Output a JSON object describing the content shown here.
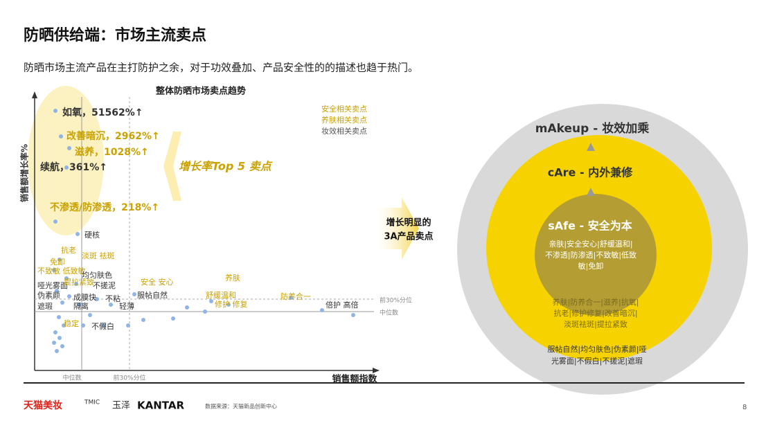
{
  "header": {
    "title": "防晒供给端：市场主流卖点",
    "subtitle": "防晒市场主流产品在主打防护之余，对于功效叠加、产品安全性的的描述也趋于热门。"
  },
  "chart": {
    "title": "整体防晒市场卖点趋势",
    "y_label": "销售额增长率%",
    "x_label": "销售额指数",
    "legend": [
      "安全相关卖点",
      "养肤相关卖点",
      "妆效相关卖点"
    ],
    "top5": [
      "如氧，51562%↑",
      "改善暗沉，2962%↑",
      "滋养，1028%↑",
      "续航，361%↑",
      "不渗透/防渗透，218%↑"
    ],
    "callout": "增长率Top 5 卖点",
    "points": [
      "硬核",
      "抗老",
      "淡斑 祛斑",
      "免卸",
      "不致敏 低致敏",
      "均匀肤色",
      "哑光雾面",
      "提拉紧致",
      "不搓泥",
      "安全 安心",
      "养肤",
      "伪素颜",
      "服帖自然",
      "舒缓温和",
      "防养合一",
      "遮瑕",
      "成膜快",
      "隔离",
      "不粘",
      "轻薄",
      "修护 修复",
      "倍护 高倍",
      "稳定",
      "不假白"
    ],
    "ref_labels": [
      "前30%分位",
      "中位数",
      "中位数",
      "前30%分位"
    ]
  },
  "arrow_label": [
    "增长明显的",
    "3A产品卖点"
  ],
  "circles": {
    "outer": {
      "title": "mAkeup - 妆效加乘",
      "items": [
        "服帖自然|均匀肤色|伪素颜|哑",
        "光雾面|不假白|不搓泥|遮瑕"
      ]
    },
    "middle": {
      "title": "cAre - 内外兼修",
      "items": [
        "养肤|防养合一|滋养|抗氧|",
        "抗老|修护修复|改善暗沉|",
        "淡斑祛斑|提拉紧致"
      ]
    },
    "inner": {
      "title": "sAfe - 安全为本",
      "items": [
        "亲肤|安全安心|舒缓温和|",
        "不渗透|防渗透|不致敏|低致",
        "敏|免卸"
      ]
    }
  },
  "footer": {
    "logos": [
      "天猫美妆",
      "TMIC",
      "玉泽",
      "KANTAR"
    ],
    "source": "数据来源：天猫新品创新中心",
    "page": "8"
  }
}
